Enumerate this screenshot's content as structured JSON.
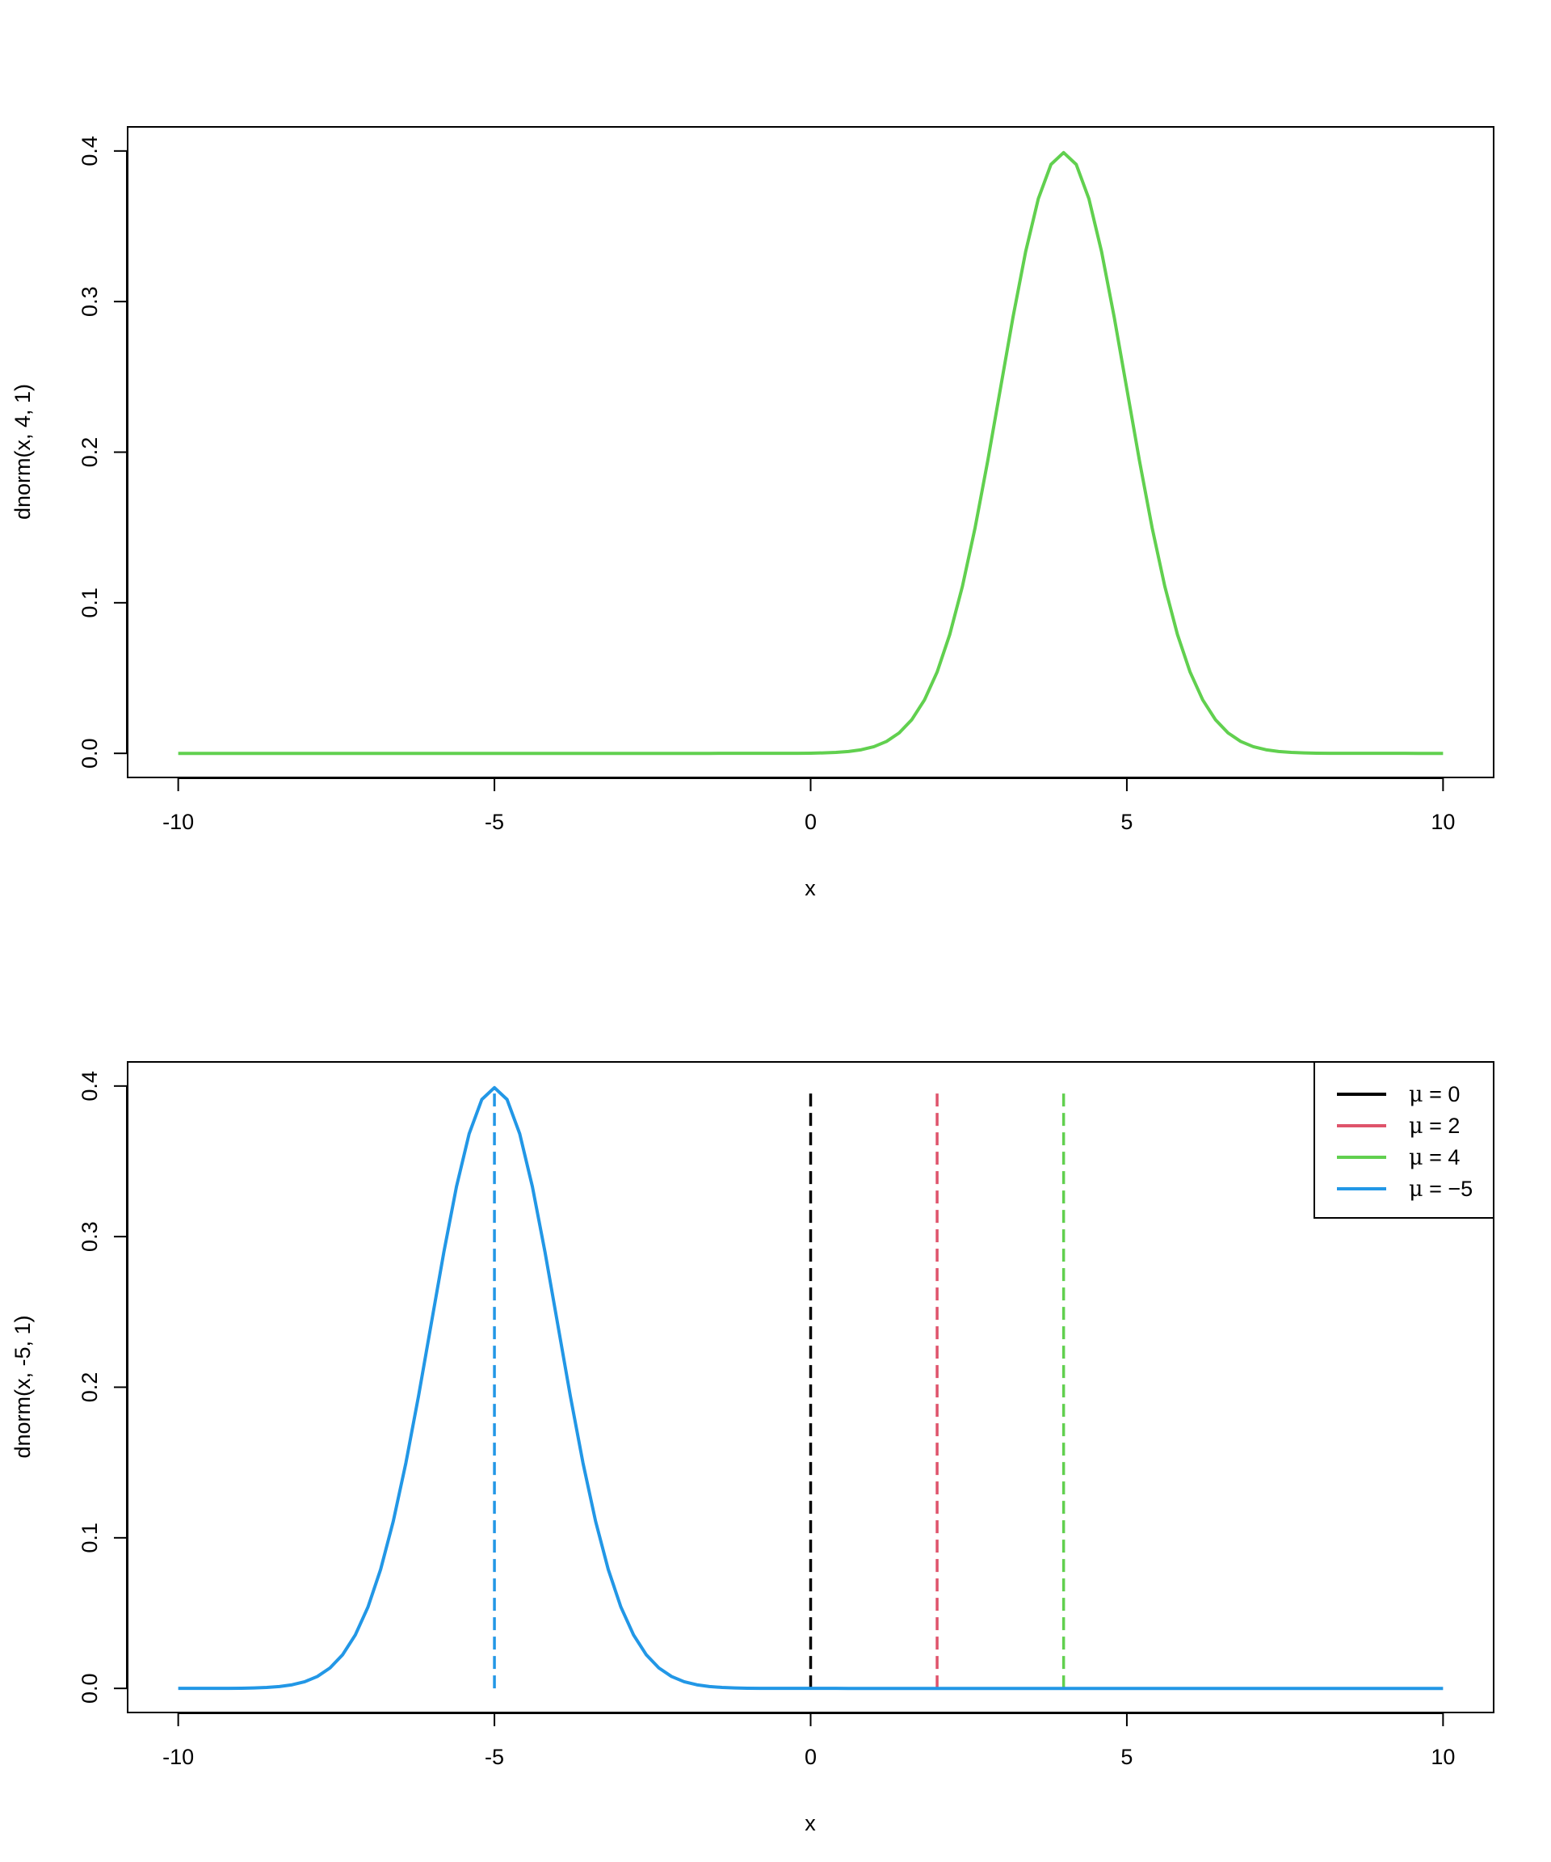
{
  "colors": {
    "black": "#000000",
    "red": "#DF536B",
    "green": "#61D04F",
    "blue": "#2297E6"
  },
  "chart_data": [
    {
      "type": "line",
      "title": "",
      "xlabel": "x",
      "ylabel": "dnorm(x, 4, 1)",
      "xlim": [
        -10,
        10
      ],
      "ylim": [
        0,
        0.4
      ],
      "x_ticks": [
        "-10",
        "-5",
        "0",
        "5",
        "10"
      ],
      "y_ticks": [
        "0.0",
        "0.1",
        "0.2",
        "0.3",
        "0.4"
      ],
      "grid": false,
      "series": [
        {
          "color": "#61D04F",
          "style": "solid",
          "function": "dnorm",
          "mean": 4,
          "sd": 1,
          "x_from": -10,
          "x_to": 10,
          "n_points": 101
        }
      ],
      "vlines": []
    },
    {
      "type": "line",
      "title": "",
      "xlabel": "x",
      "ylabel": "dnorm(x, -5, 1)",
      "xlim": [
        -10,
        10
      ],
      "ylim": [
        0,
        0.4
      ],
      "x_ticks": [
        "-10",
        "-5",
        "0",
        "5",
        "10"
      ],
      "y_ticks": [
        "0.0",
        "0.1",
        "0.2",
        "0.3",
        "0.4"
      ],
      "grid": false,
      "series": [
        {
          "color": "#2297E6",
          "style": "solid",
          "function": "dnorm",
          "mean": -5,
          "sd": 1,
          "x_from": -10,
          "x_to": 10,
          "n_points": 101
        }
      ],
      "vlines": [
        {
          "x": -5,
          "y_from": 0,
          "y_to": 0.3989,
          "color": "#2297E6",
          "style": "dashed"
        },
        {
          "x": 0,
          "y_from": 0,
          "y_to": 0.3989,
          "color": "#000000",
          "style": "dashed"
        },
        {
          "x": 2,
          "y_from": 0,
          "y_to": 0.3989,
          "color": "#DF536B",
          "style": "dashed"
        },
        {
          "x": 4,
          "y_from": 0,
          "y_to": 0.3989,
          "color": "#61D04F",
          "style": "dashed"
        }
      ],
      "legend": {
        "position": "top-right",
        "entries": [
          {
            "symbol": "μ",
            "label": " = 0",
            "color": "#000000"
          },
          {
            "symbol": "μ",
            "label": " = 2",
            "color": "#DF536B"
          },
          {
            "symbol": "μ",
            "label": " = 4",
            "color": "#61D04F"
          },
          {
            "symbol": "μ",
            "label": " = −5",
            "color": "#2297E6"
          }
        ]
      }
    }
  ]
}
